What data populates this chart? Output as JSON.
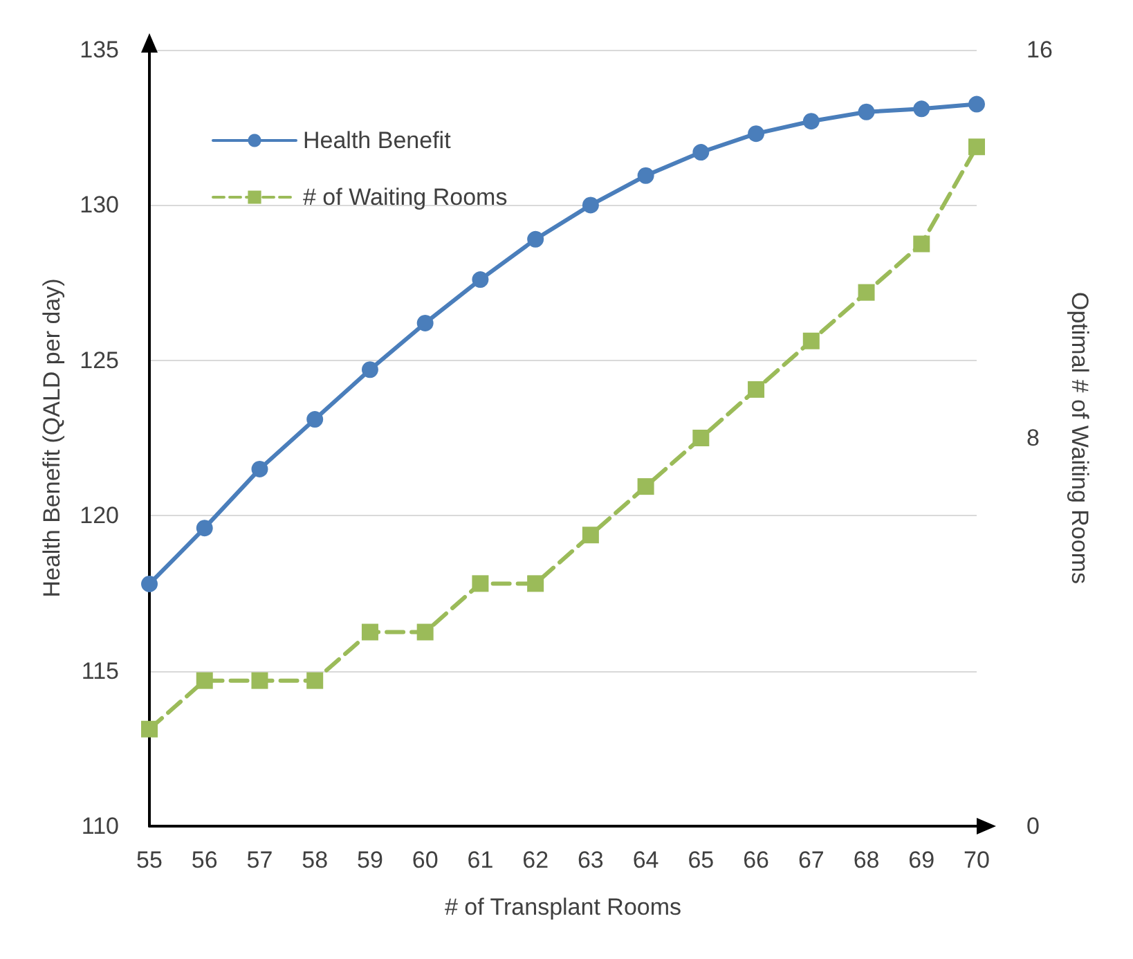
{
  "chart_data": {
    "type": "line",
    "xlabel": "# of Transplant Rooms",
    "ylabel": "Health Benefit (QALD per day)",
    "y2label": "Optimal # of Waiting Rooms",
    "categories": [
      "55",
      "56",
      "57",
      "58",
      "59",
      "60",
      "61",
      "62",
      "63",
      "64",
      "65",
      "66",
      "67",
      "68",
      "69",
      "70"
    ],
    "series": [
      {
        "name": "Health Benefit",
        "color": "#4a7ebb",
        "marker": "circle",
        "line_style": "solid",
        "values": [
          117.8,
          119.6,
          121.5,
          123.1,
          124.7,
          126.2,
          127.6,
          128.9,
          130.0,
          130.95,
          131.7,
          132.3,
          132.7,
          133.0,
          133.1,
          133.25
        ]
      },
      {
        "name": "# of Waiting Rooms",
        "color": "#9bbb59",
        "marker": "square",
        "line_style": "dashed",
        "axis": "y2",
        "values": [
          2,
          3,
          3,
          3,
          4,
          4,
          5,
          5,
          6,
          7,
          8,
          9,
          10,
          11,
          12,
          14
        ]
      }
    ],
    "ylim": [
      110,
      135
    ],
    "yticks": [
      110,
      115,
      120,
      125,
      130,
      135
    ],
    "y2lim": [
      0,
      16
    ],
    "y2ticks": [
      0,
      8,
      16
    ],
    "grid": "y",
    "legend": "top left"
  }
}
